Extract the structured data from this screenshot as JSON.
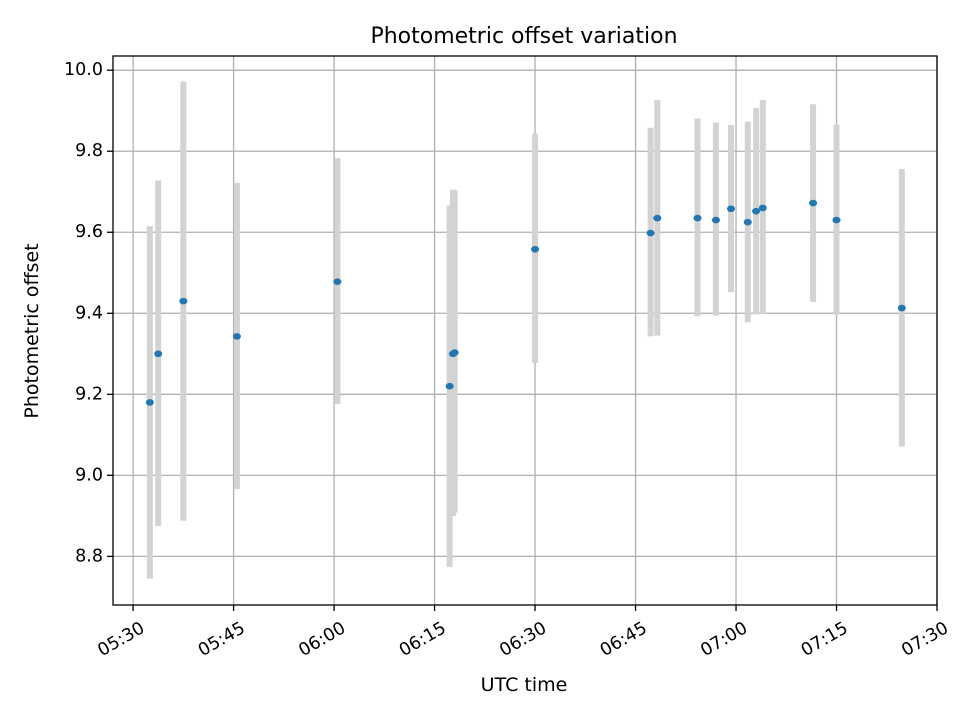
{
  "chart_data": {
    "type": "scatter",
    "title": "Photometric offset variation",
    "xlabel": "UTC time",
    "ylabel": "Photometric offset",
    "x_axis": {
      "type": "time",
      "range": [
        "05:27",
        "07:30"
      ],
      "ticks": [
        "05:30",
        "05:45",
        "06:00",
        "06:15",
        "06:30",
        "06:45",
        "07:00",
        "07:15",
        "07:30"
      ]
    },
    "y_axis": {
      "range": [
        8.68,
        10.035
      ],
      "ticks": [
        "8.8",
        "9.0",
        "9.2",
        "9.4",
        "9.6",
        "9.8",
        "10.0"
      ]
    },
    "grid": true,
    "colors": {
      "point": "#1f77b4",
      "errorbar": "#d3d3d3",
      "grid": "#b0b0b0"
    },
    "points": [
      {
        "time": "05:32:30",
        "offset": 9.18,
        "low": 8.745,
        "high": 9.615
      },
      {
        "time": "05:33:45",
        "offset": 9.3,
        "low": 8.875,
        "high": 9.728
      },
      {
        "time": "05:37:30",
        "offset": 9.43,
        "low": 8.888,
        "high": 9.972
      },
      {
        "time": "05:45:30",
        "offset": 9.343,
        "low": 8.966,
        "high": 9.722
      },
      {
        "time": "06:00:30",
        "offset": 9.478,
        "low": 9.176,
        "high": 9.783
      },
      {
        "time": "06:17:15",
        "offset": 9.22,
        "low": 8.774,
        "high": 9.666
      },
      {
        "time": "06:17:45",
        "offset": 9.3,
        "low": 8.9,
        "high": 9.705
      },
      {
        "time": "06:18:00",
        "offset": 9.303,
        "low": 8.908,
        "high": 9.703
      },
      {
        "time": "06:30:00",
        "offset": 9.558,
        "low": 9.277,
        "high": 9.843
      },
      {
        "time": "06:47:15",
        "offset": 9.598,
        "low": 9.343,
        "high": 9.858
      },
      {
        "time": "06:48:15",
        "offset": 9.635,
        "low": 9.345,
        "high": 9.926
      },
      {
        "time": "06:54:15",
        "offset": 9.635,
        "low": 9.393,
        "high": 9.881
      },
      {
        "time": "06:57:00",
        "offset": 9.63,
        "low": 9.394,
        "high": 9.871
      },
      {
        "time": "06:59:15",
        "offset": 9.658,
        "low": 9.452,
        "high": 9.865
      },
      {
        "time": "07:01:45",
        "offset": 9.625,
        "low": 9.378,
        "high": 9.873
      },
      {
        "time": "07:03:00",
        "offset": 9.652,
        "low": 9.397,
        "high": 9.907
      },
      {
        "time": "07:04:00",
        "offset": 9.66,
        "low": 9.398,
        "high": 9.926
      },
      {
        "time": "07:11:30",
        "offset": 9.672,
        "low": 9.428,
        "high": 9.916
      },
      {
        "time": "07:15:00",
        "offset": 9.63,
        "low": 9.397,
        "high": 9.866
      },
      {
        "time": "07:24:45",
        "offset": 9.413,
        "low": 9.071,
        "high": 9.756
      }
    ]
  }
}
